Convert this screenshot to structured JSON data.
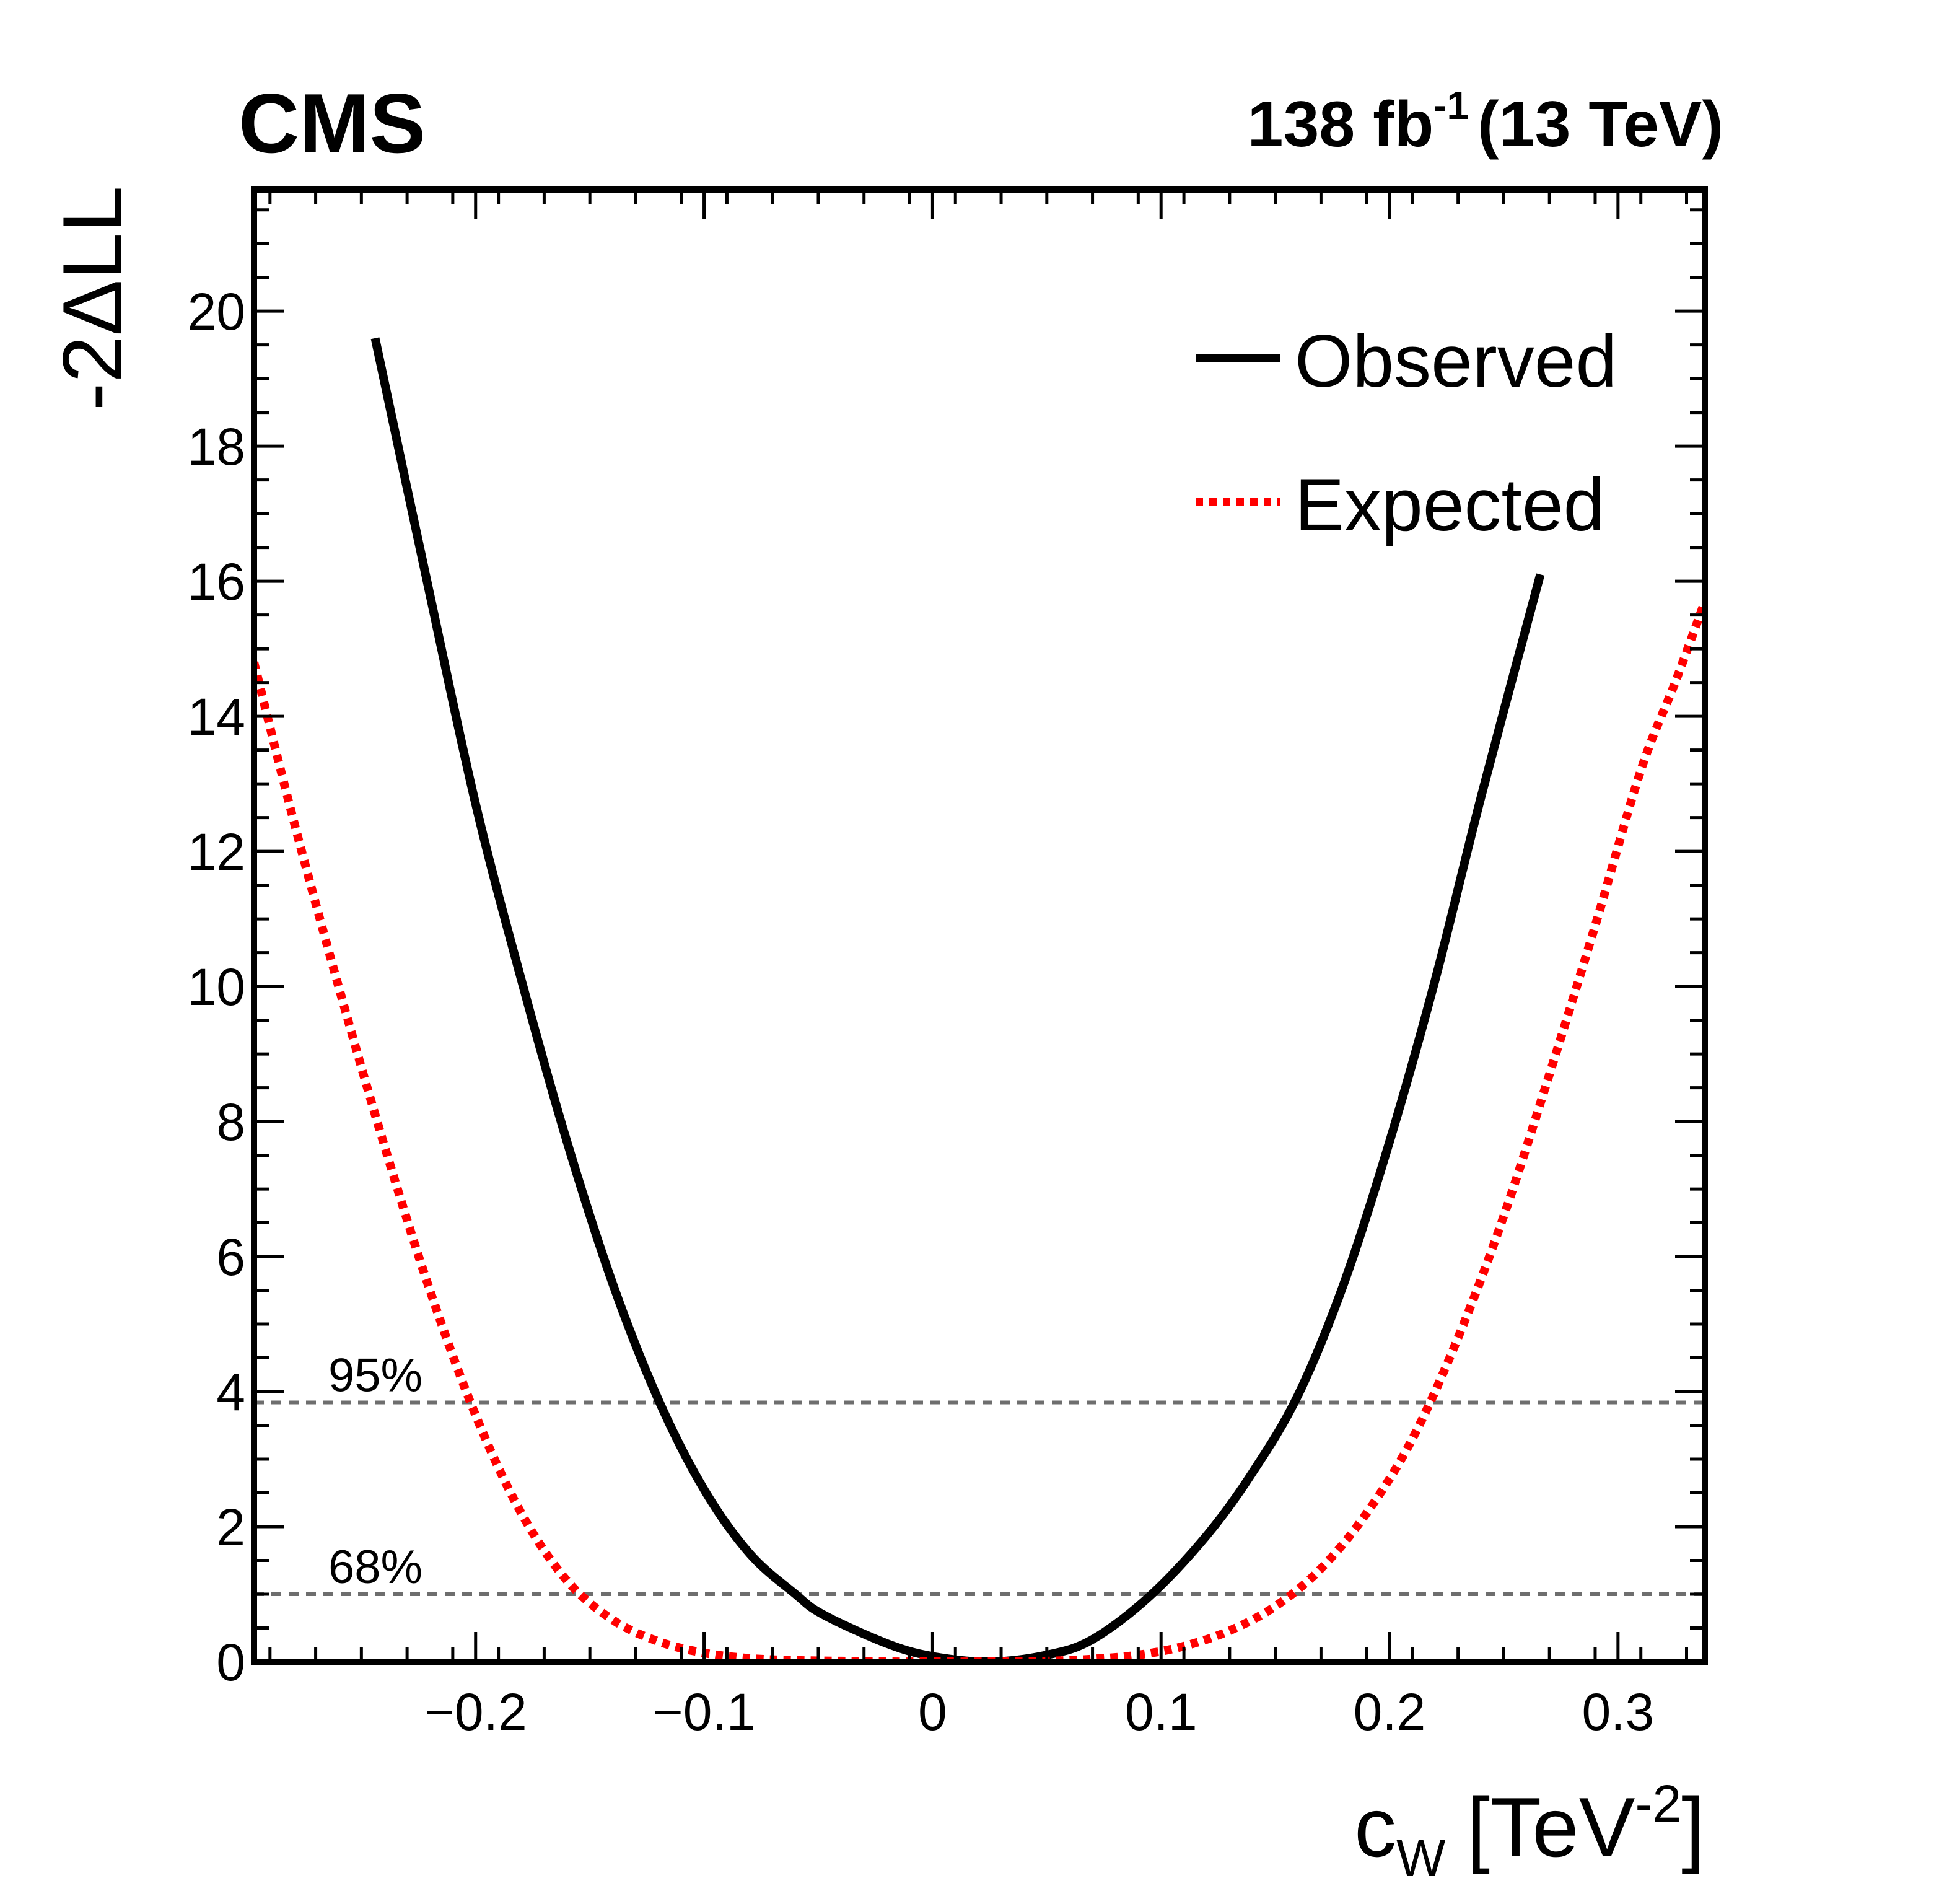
{
  "header": {
    "experiment": "CMS",
    "lumi_value": "138 fb",
    "lumi_exponent": "-1",
    "energy": "(13 TeV)"
  },
  "axes": {
    "ylabel": "-2ΔLL",
    "xlabel_main": "c",
    "xlabel_sub": "W",
    "xlabel_unit_pre": "[TeV",
    "xlabel_unit_exp": "-2",
    "xlabel_unit_post": "]"
  },
  "legend": {
    "observed": "Observed",
    "expected": "Expected"
  },
  "threshold_labels": {
    "cl95": "95%",
    "cl68": "68%"
  },
  "colors": {
    "observed": "#000000",
    "expected": "#ff0000",
    "threshold": "#6e6e6e",
    "frame": "#000000"
  },
  "chart_data": {
    "type": "line",
    "xlim": [
      -0.297,
      0.338
    ],
    "ylim": [
      0,
      21.8
    ],
    "x_ticks": [
      -0.2,
      -0.1,
      0,
      0.1,
      0.2,
      0.3
    ],
    "x_tick_labels": [
      "−0.2",
      "−0.1",
      "0",
      "0.1",
      "0.2",
      "0.3"
    ],
    "y_ticks": [
      0,
      2,
      4,
      6,
      8,
      10,
      12,
      14,
      16,
      18,
      20
    ],
    "y_tick_labels": [
      "0",
      "2",
      "4",
      "6",
      "8",
      "10",
      "12",
      "14",
      "16",
      "18",
      "20"
    ],
    "grid": false,
    "legend_position": "top-right",
    "thresholds": [
      {
        "label": "95%",
        "y": 3.84
      },
      {
        "label": "68%",
        "y": 1.0
      }
    ],
    "series": [
      {
        "name": "Observed",
        "style": "solid",
        "x": [
          -0.244,
          -0.22,
          -0.2,
          -0.18,
          -0.16,
          -0.14,
          -0.12,
          -0.1,
          -0.08,
          -0.06,
          -0.048,
          -0.02,
          0.0,
          0.025,
          0.05,
          0.07,
          0.095,
          0.12,
          0.14,
          0.16,
          0.18,
          0.2,
          0.22,
          0.24,
          0.266
        ],
        "y": [
          19.6,
          15.8,
          12.7,
          10.1,
          7.7,
          5.6,
          3.88,
          2.55,
          1.6,
          1.0,
          0.7,
          0.27,
          0.08,
          0.0,
          0.1,
          0.33,
          0.97,
          1.87,
          2.8,
          3.95,
          5.6,
          7.7,
          10.1,
          12.8,
          16.1
        ]
      },
      {
        "name": "Expected",
        "style": "dotted",
        "x": [
          -0.297,
          -0.28,
          -0.26,
          -0.24,
          -0.22,
          -0.2,
          -0.18,
          -0.16,
          -0.14,
          -0.12,
          -0.1,
          -0.08,
          -0.06,
          -0.04,
          -0.02,
          0.0,
          0.025,
          0.05,
          0.07,
          0.09,
          0.11,
          0.13,
          0.15,
          0.17,
          0.19,
          0.21,
          0.23,
          0.25,
          0.27,
          0.29,
          0.31,
          0.325,
          0.338
        ],
        "y": [
          14.8,
          12.5,
          10.0,
          7.65,
          5.5,
          3.65,
          2.2,
          1.2,
          0.62,
          0.3,
          0.13,
          0.05,
          0.02,
          0.01,
          0.0,
          0.0,
          0.0,
          0.01,
          0.04,
          0.1,
          0.23,
          0.46,
          0.82,
          1.38,
          2.2,
          3.3,
          4.8,
          6.6,
          8.7,
          10.9,
          13.2,
          14.5,
          15.7
        ]
      }
    ]
  }
}
